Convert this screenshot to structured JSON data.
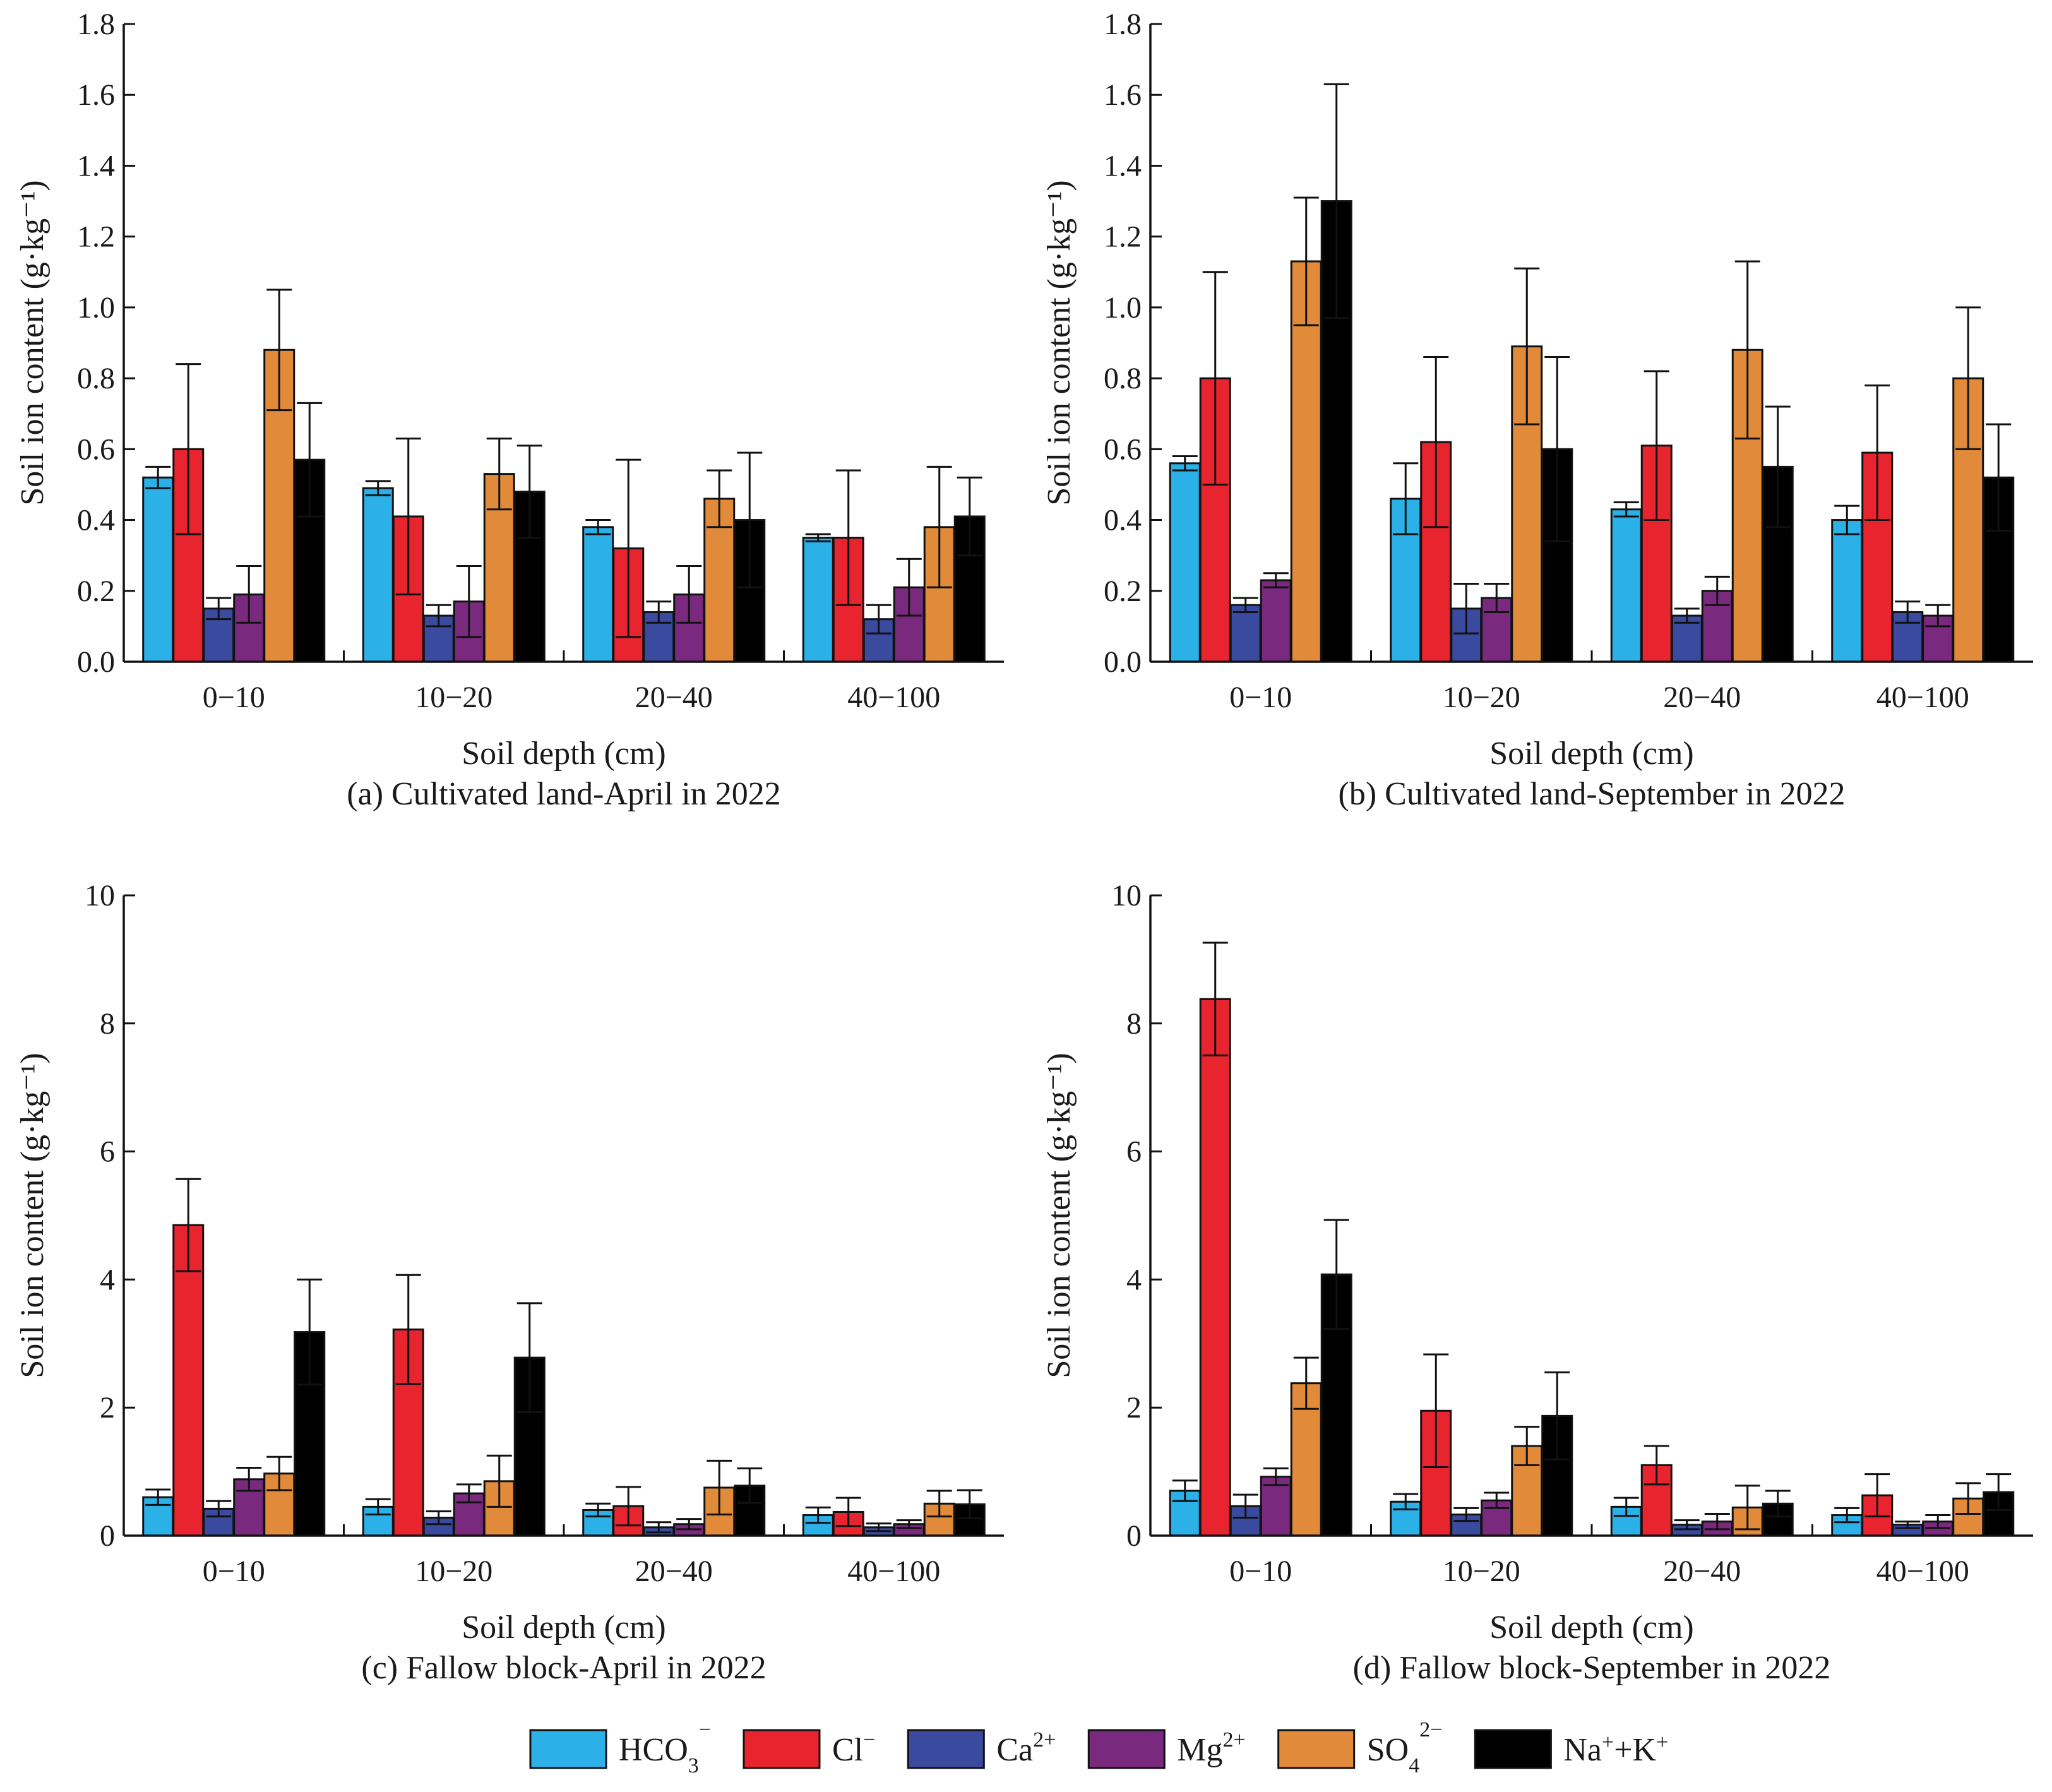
{
  "colors": {
    "HCO3": "#2cb0e8",
    "Cl": "#e8242e",
    "Ca": "#3a4a9e",
    "Mg": "#7a2a7e",
    "SO4": "#e08a3a",
    "NaK": "#000000"
  },
  "legend": [
    {
      "key": "HCO3",
      "base": "HCO",
      "sub": "3",
      "sup": "−"
    },
    {
      "key": "Cl",
      "base": "Cl",
      "sub": "",
      "sup": "−"
    },
    {
      "key": "Ca",
      "base": "Ca",
      "sub": "",
      "sup": "2+"
    },
    {
      "key": "Mg",
      "base": "Mg",
      "sub": "",
      "sup": "2+"
    },
    {
      "key": "SO4",
      "base": "SO",
      "sub": "4",
      "sup": "2−"
    },
    {
      "key": "NaK",
      "base": "Na+K",
      "sub": "",
      "sup": "",
      "rich": true
    }
  ],
  "chart_data": [
    {
      "id": "a",
      "type": "bar",
      "caption": "(a) Cultivated land-April in 2022",
      "xlabel": "Soil depth (cm)",
      "ylabel": "Soil ion content (g·kg⁻¹)",
      "ylim": [
        0,
        1.8
      ],
      "yticks": [
        "0.0",
        "0.2",
        "0.4",
        "0.6",
        "0.8",
        "1.0",
        "1.2",
        "1.4",
        "1.6",
        "1.8"
      ],
      "categories": [
        "0−10",
        "10−20",
        "20−40",
        "40−100"
      ],
      "series": [
        {
          "name": "HCO3",
          "values": [
            0.52,
            0.49,
            0.38,
            0.35
          ],
          "errors": [
            0.03,
            0.02,
            0.02,
            0.01
          ]
        },
        {
          "name": "Cl",
          "values": [
            0.6,
            0.41,
            0.32,
            0.35
          ],
          "errors": [
            0.24,
            0.22,
            0.25,
            0.19
          ]
        },
        {
          "name": "Ca",
          "values": [
            0.15,
            0.13,
            0.14,
            0.12
          ],
          "errors": [
            0.03,
            0.03,
            0.03,
            0.04
          ]
        },
        {
          "name": "Mg",
          "values": [
            0.19,
            0.17,
            0.19,
            0.21
          ],
          "errors": [
            0.08,
            0.1,
            0.08,
            0.08
          ]
        },
        {
          "name": "SO4",
          "values": [
            0.88,
            0.53,
            0.46,
            0.38
          ],
          "errors": [
            0.17,
            0.1,
            0.08,
            0.17
          ]
        },
        {
          "name": "NaK",
          "values": [
            0.57,
            0.48,
            0.4,
            0.41
          ],
          "errors": [
            0.16,
            0.13,
            0.19,
            0.11
          ]
        }
      ]
    },
    {
      "id": "b",
      "type": "bar",
      "caption": "(b) Cultivated land-September in 2022",
      "xlabel": "Soil depth (cm)",
      "ylabel": "Soil ion content (g·kg⁻¹)",
      "ylim": [
        0,
        1.8
      ],
      "yticks": [
        "0.0",
        "0.2",
        "0.4",
        "0.6",
        "0.8",
        "1.0",
        "1.2",
        "1.4",
        "1.6",
        "1.8"
      ],
      "categories": [
        "0−10",
        "10−20",
        "20−40",
        "40−100"
      ],
      "series": [
        {
          "name": "HCO3",
          "values": [
            0.56,
            0.46,
            0.43,
            0.4
          ],
          "errors": [
            0.02,
            0.1,
            0.02,
            0.04
          ]
        },
        {
          "name": "Cl",
          "values": [
            0.8,
            0.62,
            0.61,
            0.59
          ],
          "errors": [
            0.3,
            0.24,
            0.21,
            0.19
          ]
        },
        {
          "name": "Ca",
          "values": [
            0.16,
            0.15,
            0.13,
            0.14
          ],
          "errors": [
            0.02,
            0.07,
            0.02,
            0.03
          ]
        },
        {
          "name": "Mg",
          "values": [
            0.23,
            0.18,
            0.2,
            0.13
          ],
          "errors": [
            0.02,
            0.04,
            0.04,
            0.03
          ]
        },
        {
          "name": "SO4",
          "values": [
            1.13,
            0.89,
            0.88,
            0.8
          ],
          "errors": [
            0.18,
            0.22,
            0.25,
            0.2
          ]
        },
        {
          "name": "NaK",
          "values": [
            1.3,
            0.6,
            0.55,
            0.52
          ],
          "errors": [
            0.33,
            0.26,
            0.17,
            0.15
          ]
        }
      ]
    },
    {
      "id": "c",
      "type": "bar",
      "caption": "(c) Fallow block-April in 2022",
      "xlabel": "Soil depth (cm)",
      "ylabel": "Soil ion content (g·kg⁻¹)",
      "ylim": [
        0,
        10
      ],
      "yticks": [
        "0",
        "2",
        "4",
        "6",
        "8",
        "10"
      ],
      "categories": [
        "0−10",
        "10−20",
        "20−40",
        "40−100"
      ],
      "series": [
        {
          "name": "HCO3",
          "values": [
            0.6,
            0.45,
            0.4,
            0.32
          ],
          "errors": [
            0.12,
            0.12,
            0.1,
            0.12
          ]
        },
        {
          "name": "Cl",
          "values": [
            4.85,
            3.22,
            0.46,
            0.37
          ],
          "errors": [
            0.72,
            0.85,
            0.3,
            0.22
          ]
        },
        {
          "name": "Ca",
          "values": [
            0.42,
            0.28,
            0.13,
            0.13
          ],
          "errors": [
            0.12,
            0.1,
            0.08,
            0.06
          ]
        },
        {
          "name": "Mg",
          "values": [
            0.88,
            0.66,
            0.18,
            0.18
          ],
          "errors": [
            0.18,
            0.14,
            0.08,
            0.06
          ]
        },
        {
          "name": "SO4",
          "values": [
            0.97,
            0.85,
            0.75,
            0.5
          ],
          "errors": [
            0.26,
            0.4,
            0.42,
            0.2
          ]
        },
        {
          "name": "NaK",
          "values": [
            3.18,
            2.78,
            0.78,
            0.49
          ],
          "errors": [
            0.82,
            0.85,
            0.27,
            0.22
          ]
        }
      ]
    },
    {
      "id": "d",
      "type": "bar",
      "caption": "(d) Fallow block-September in 2022",
      "xlabel": "Soil depth (cm)",
      "ylabel": "Soil ion content (g·kg⁻¹)",
      "ylim": [
        0,
        10
      ],
      "yticks": [
        "0",
        "2",
        "4",
        "6",
        "8",
        "10"
      ],
      "categories": [
        "0−10",
        "10−20",
        "20−40",
        "40−100"
      ],
      "series": [
        {
          "name": "HCO3",
          "values": [
            0.7,
            0.53,
            0.45,
            0.32
          ],
          "errors": [
            0.16,
            0.12,
            0.14,
            0.11
          ]
        },
        {
          "name": "Cl",
          "values": [
            8.38,
            1.95,
            1.1,
            0.63
          ],
          "errors": [
            0.88,
            0.88,
            0.3,
            0.33
          ]
        },
        {
          "name": "Ca",
          "values": [
            0.46,
            0.33,
            0.17,
            0.17
          ],
          "errors": [
            0.18,
            0.1,
            0.07,
            0.05
          ]
        },
        {
          "name": "Mg",
          "values": [
            0.92,
            0.55,
            0.22,
            0.22
          ],
          "errors": [
            0.13,
            0.12,
            0.12,
            0.1
          ]
        },
        {
          "name": "SO4",
          "values": [
            2.38,
            1.4,
            0.44,
            0.58
          ],
          "errors": [
            0.4,
            0.3,
            0.34,
            0.24
          ]
        },
        {
          "name": "NaK",
          "values": [
            4.08,
            1.87,
            0.5,
            0.68
          ],
          "errors": [
            0.85,
            0.68,
            0.2,
            0.28
          ]
        }
      ]
    }
  ]
}
